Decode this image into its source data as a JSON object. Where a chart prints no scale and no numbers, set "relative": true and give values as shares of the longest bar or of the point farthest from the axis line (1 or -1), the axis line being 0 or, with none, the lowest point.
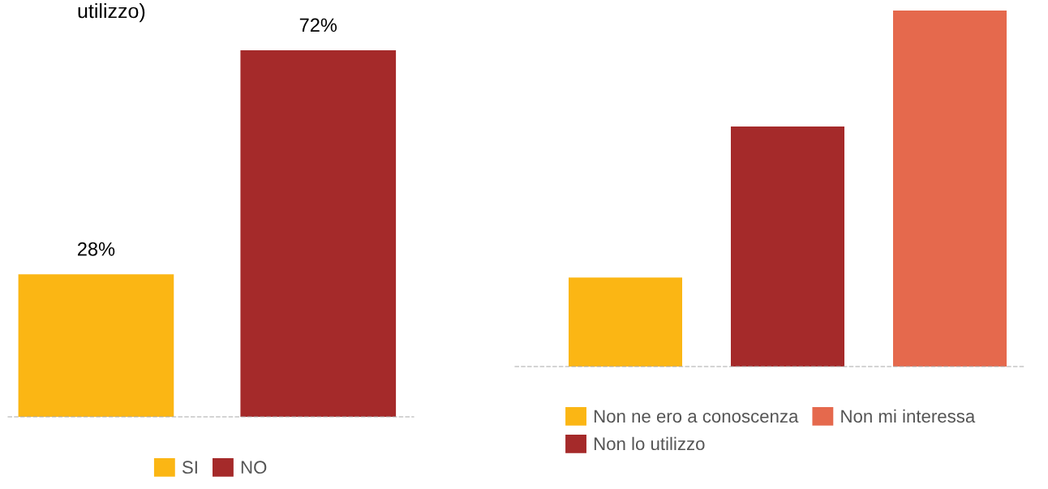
{
  "chart_data": [
    {
      "type": "bar",
      "stacked": true,
      "title": "utilizzo)",
      "categories": [
        null,
        null
      ],
      "series": [
        {
          "name": "SI",
          "color": "#fbb614",
          "values": [
            28,
            null
          ],
          "value_labels": [
            "28%",
            null
          ]
        },
        {
          "name": "NO",
          "color": "#a52a2a",
          "values": [
            null,
            72
          ],
          "value_labels": [
            null,
            "72%"
          ]
        }
      ],
      "legend": "bottom",
      "grid": false
    },
    {
      "type": "bar",
      "stacked": true,
      "relative": true,
      "categories": [
        null,
        null,
        null
      ],
      "series": [
        {
          "name": "Non ne ero a conoscenza",
          "color": "#fbb614",
          "values": [
            0.25,
            null,
            null
          ]
        },
        {
          "name": "Non lo utilizzo",
          "color": "#a52a2a",
          "values": [
            null,
            0.674,
            null
          ]
        },
        {
          "name": "Non mi interessa",
          "color": "#e5694d",
          "values": [
            null,
            null,
            1
          ]
        }
      ],
      "legend": "bottom",
      "grid": false
    }
  ]
}
